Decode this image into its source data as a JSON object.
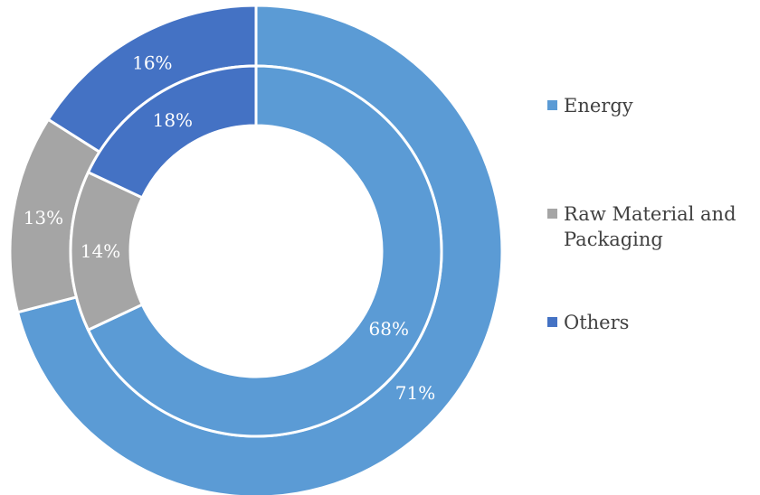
{
  "chart_data": {
    "type": "pie",
    "subtype": "double-donut",
    "title": "",
    "categories": [
      "Energy",
      "Raw Material and Packaging",
      "Others"
    ],
    "series": [
      {
        "ring": "outer",
        "values": [
          71,
          13,
          16
        ],
        "labels": [
          "71%",
          "13%",
          "16%"
        ]
      },
      {
        "ring": "inner",
        "values": [
          68,
          14,
          18
        ],
        "labels": [
          "68%",
          "14%",
          "18%"
        ]
      }
    ],
    "colors": [
      "#5B9BD5",
      "#A5A5A5",
      "#4472C4"
    ],
    "legend": {
      "position": "right",
      "items": [
        {
          "label": "Energy",
          "color": "#5B9BD5"
        },
        {
          "label": "Raw Material and Packaging",
          "color": "#A5A5A5"
        },
        {
          "label": "Others",
          "color": "#4472C4"
        }
      ]
    }
  }
}
